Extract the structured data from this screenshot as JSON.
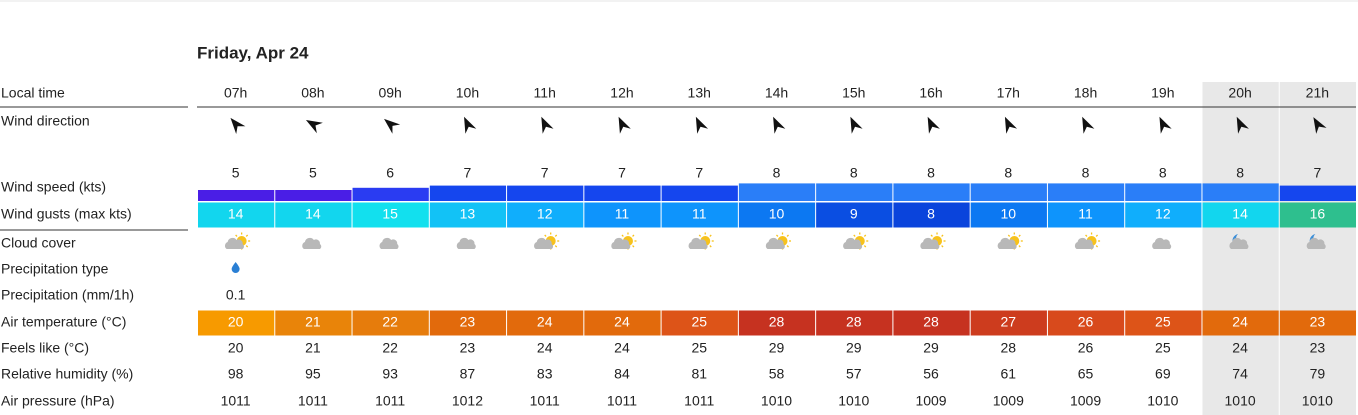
{
  "header": {
    "title": "Friday, Apr 24"
  },
  "table": {
    "row_labels": [
      "Local time",
      "Wind direction",
      "Wind speed (kts)",
      "Wind gusts (max kts)",
      "Cloud cover",
      "Precipitation type",
      "Precipitation (mm/1h)",
      "Air temperature (°C)",
      "Feels like (°C)",
      "Relative humidity (%)",
      "Air pressure (hPa)"
    ],
    "hours": [
      "07h",
      "08h",
      "09h",
      "10h",
      "11h",
      "12h",
      "13h",
      "14h",
      "15h",
      "16h",
      "17h",
      "18h",
      "19h",
      "20h",
      "21h"
    ],
    "wind_direction": [
      -40,
      -60,
      -50,
      -25,
      -25,
      -25,
      -25,
      -25,
      -25,
      -25,
      -25,
      -25,
      -25,
      -25,
      -30
    ],
    "wind_speed": [
      5,
      5,
      6,
      7,
      7,
      7,
      7,
      8,
      8,
      8,
      8,
      8,
      8,
      8,
      7
    ],
    "wind_speed_colors": [
      "#4a1ee6",
      "#4a1ee6",
      "#2a3cf2",
      "#1546ee",
      "#1546ee",
      "#1546ee",
      "#1546ee",
      "#2a7ef8",
      "#2a7ef8",
      "#2a7ef8",
      "#2a7ef8",
      "#2a7ef8",
      "#2a7ef8",
      "#2a7ef8",
      "#1546ee"
    ],
    "wind_gusts": [
      14,
      14,
      15,
      13,
      12,
      11,
      11,
      10,
      9,
      8,
      10,
      11,
      12,
      14,
      16
    ],
    "wind_gusts_colors": [
      "#12d6ee",
      "#12d6ee",
      "#12e0ee",
      "#12c2f6",
      "#10aefc",
      "#0e94fc",
      "#0e94fc",
      "#0c78f2",
      "#0a4ee2",
      "#0a44dc",
      "#0c78f2",
      "#0e94fc",
      "#10aefc",
      "#12d6ee",
      "#2ebf8e"
    ],
    "precipitation": [
      0.1,
      null,
      null,
      null,
      null,
      null,
      null,
      null,
      null,
      null,
      null,
      null,
      null,
      null,
      null
    ],
    "air_temperature": [
      20,
      21,
      22,
      23,
      24,
      24,
      25,
      28,
      28,
      28,
      27,
      26,
      25,
      24,
      23
    ],
    "air_temperature_colors": [
      "#f79a00",
      "#e98409",
      "#e67c0c",
      "#e26a0c",
      "#e26a0c",
      "#e26a0c",
      "#dd5418",
      "#c63220",
      "#c63220",
      "#c63220",
      "#cd3c1e",
      "#d84a1c",
      "#dd5418",
      "#e26a0c",
      "#e26a0c"
    ],
    "feels_like": [
      20,
      21,
      22,
      23,
      24,
      24,
      25,
      29,
      29,
      29,
      28,
      26,
      25,
      24,
      23
    ],
    "relative_humidity": [
      98,
      95,
      93,
      87,
      83,
      84,
      81,
      58,
      57,
      56,
      61,
      65,
      69,
      74,
      79
    ],
    "air_pressure": [
      1011,
      1011,
      1011,
      1012,
      1011,
      1011,
      1011,
      1010,
      1010,
      1009,
      1009,
      1009,
      1010,
      1010,
      1010
    ]
  }
}
